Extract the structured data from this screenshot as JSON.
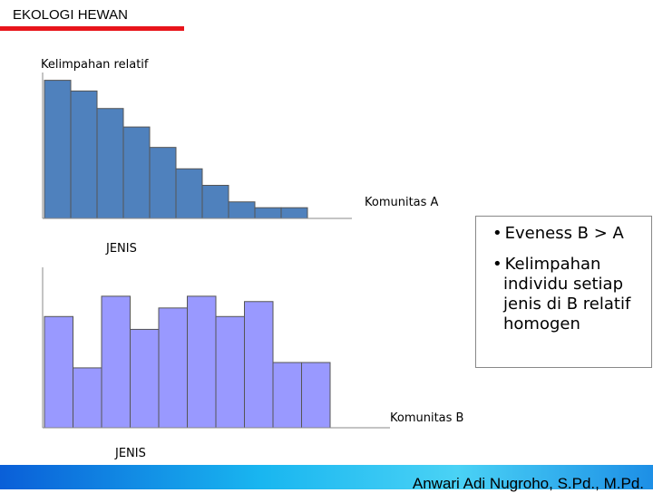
{
  "slide_title": "EKOLOGI HEWAN",
  "chart_data": [
    {
      "type": "bar",
      "y_label": "Kelimpahan relatif",
      "annotation": "Komunitas A",
      "x_label": "JENIS",
      "categories": [
        null,
        null,
        null,
        null,
        null,
        null,
        null,
        null,
        null,
        null
      ],
      "values": [
        142,
        131,
        113,
        94,
        73,
        51,
        34,
        17,
        11,
        11
      ],
      "color": "#4f81bd",
      "ylim": [
        0,
        150
      ]
    },
    {
      "type": "bar",
      "annotation": "Komunitas B",
      "x_label": "JENIS",
      "categories": [
        null,
        null,
        null,
        null,
        null,
        null,
        null,
        null,
        null,
        null
      ],
      "values": [
        104,
        56,
        123,
        92,
        112,
        123,
        104,
        118,
        61,
        61
      ],
      "color": "#9999ff",
      "ylim": [
        0,
        150
      ]
    }
  ],
  "bullets": [
    "Eveness B > A",
    "Kelimpahan individu setiap jenis di B relatif homogen"
  ],
  "footer": "Anwari Adi Nugroho, S.Pd., M.Pd."
}
